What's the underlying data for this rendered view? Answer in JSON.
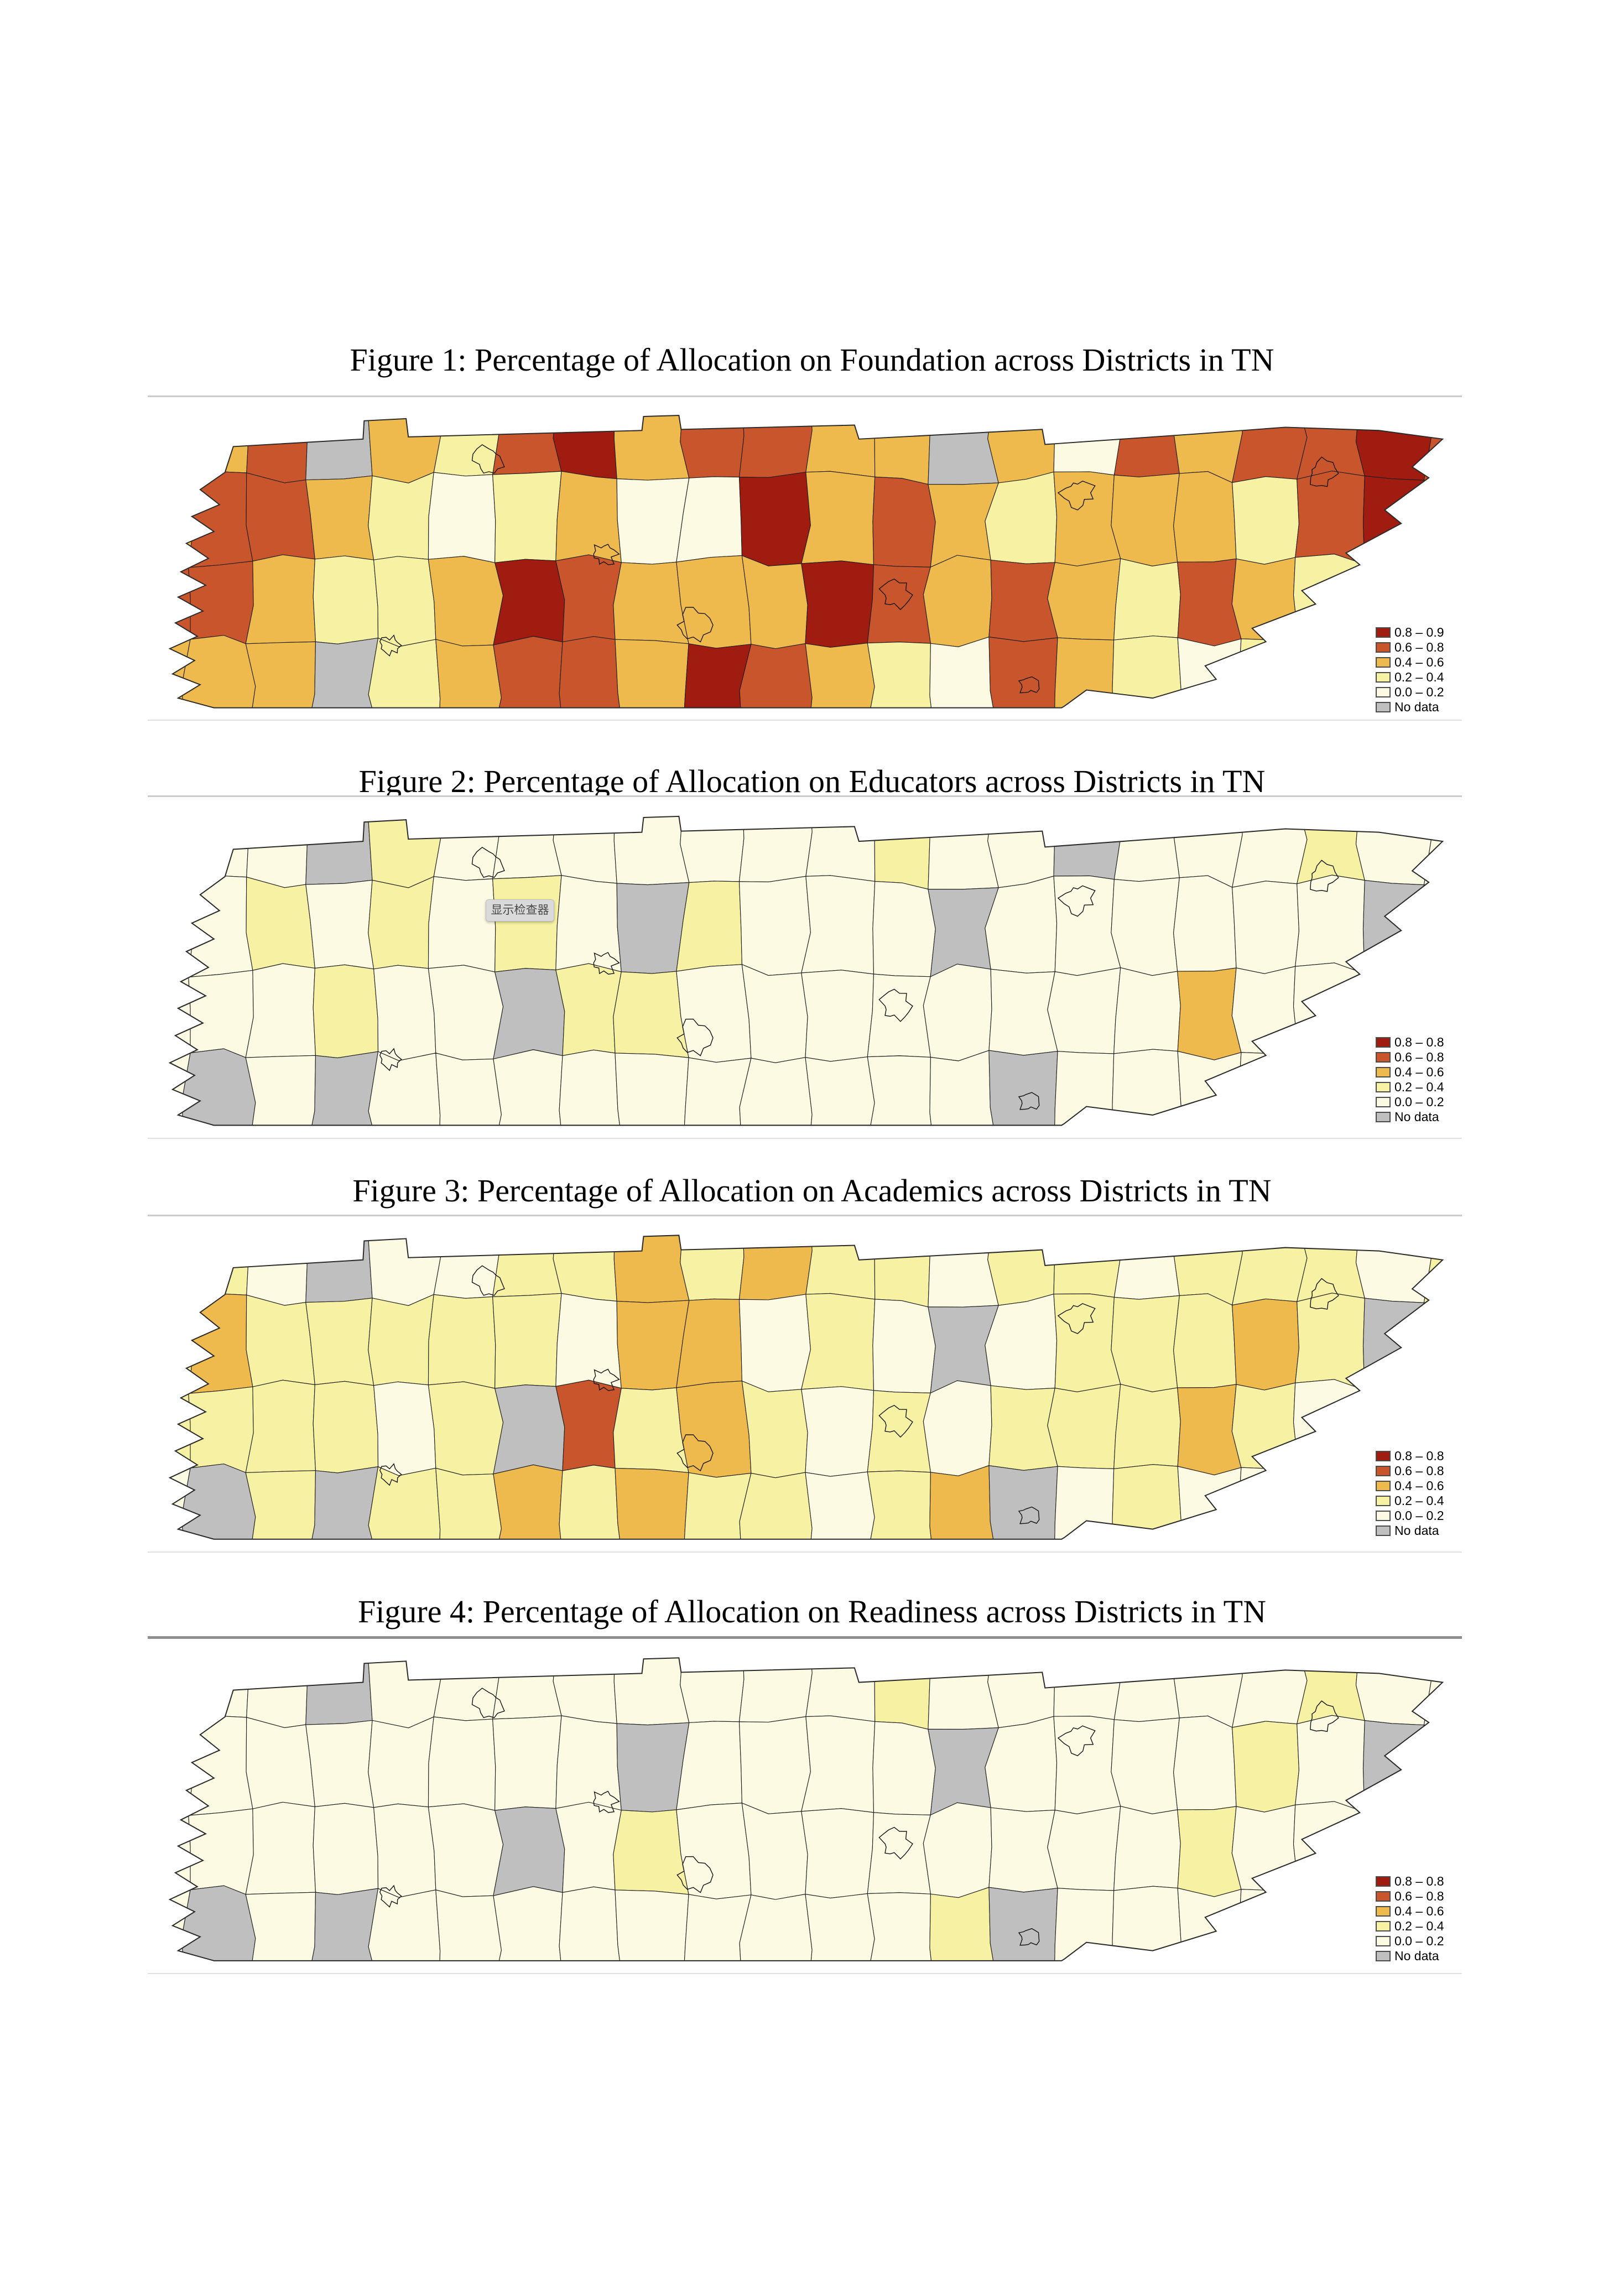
{
  "page": {
    "background": "#ffffff"
  },
  "palette": {
    "q5": "#A01B10",
    "q4": "#C8552B",
    "q3": "#EFBA4D",
    "q2": "#F7F1A3",
    "q1": "#FCFAE3",
    "nd": "#BFBFBF",
    "county_border": "#1c1c1c",
    "state_border": "#2a2a2a"
  },
  "figures": [
    {
      "title": "Figure 1: Percentage of Allocation on Foundation across Districts in TN",
      "legend": [
        {
          "label": "0.8 – 0.9",
          "class": "q5"
        },
        {
          "label": "0.6 – 0.8",
          "class": "q4"
        },
        {
          "label": "0.4 – 0.6",
          "class": "q3"
        },
        {
          "label": "0.2 – 0.4",
          "class": "q2"
        },
        {
          "label": "0.0 – 0.2",
          "class": "q1"
        },
        {
          "label": "No data",
          "class": "nd"
        }
      ],
      "cells": [
        "q2",
        "q3",
        "q4",
        "nd",
        "q3",
        "q2",
        "q4",
        "q5",
        "q3",
        "q4",
        "q4",
        "q3",
        "q3",
        "nd",
        "q3",
        "q1",
        "q4",
        "q3",
        "q4",
        "q4",
        "q5",
        "q4",
        "q3",
        "q4",
        "q4",
        "q3",
        "q2",
        "q1",
        "q2",
        "q3",
        "q1",
        "q1",
        "q5",
        "q3",
        "q4",
        "q3",
        "q2",
        "q3",
        "q3",
        "q3",
        "q2",
        "q4",
        "q5",
        "q1",
        "q4",
        "q4",
        "q3",
        "q2",
        "q2",
        "q3",
        "q5",
        "q4",
        "q3",
        "q3",
        "q3",
        "q5",
        "q4",
        "q3",
        "q4",
        "q3",
        "q2",
        "q4",
        "q3",
        "q2",
        "q4",
        "q4",
        "q3",
        "q3",
        "q3",
        "nd",
        "q2",
        "q3",
        "q4",
        "q4",
        "q3",
        "q5",
        "q4",
        "q3",
        "q2",
        "q1",
        "q4",
        "q3",
        "q2",
        "q1",
        "q2",
        "q1",
        "q1",
        "q1"
      ]
    },
    {
      "title": "Figure 2: Percentage of Allocation on Educators across Districts in TN",
      "tooltip": {
        "text": "显示检查器"
      },
      "legend": [
        {
          "label": "0.8 – 0.8",
          "class": "q5"
        },
        {
          "label": "0.6 – 0.8",
          "class": "q4"
        },
        {
          "label": "0.4 – 0.6",
          "class": "q3"
        },
        {
          "label": "0.2 – 0.4",
          "class": "q2"
        },
        {
          "label": "0.0 – 0.2",
          "class": "q1"
        },
        {
          "label": "No data",
          "class": "nd"
        }
      ],
      "cells": [
        "q1",
        "q1",
        "q1",
        "nd",
        "q2",
        "q1",
        "q1",
        "q1",
        "q1",
        "q1",
        "q1",
        "q1",
        "q2",
        "q1",
        "q1",
        "nd",
        "q1",
        "q1",
        "q1",
        "q2",
        "q1",
        "q1",
        "q1",
        "q1",
        "q2",
        "q1",
        "q2",
        "q1",
        "q2",
        "q1",
        "nd",
        "q2",
        "q1",
        "q1",
        "q1",
        "nd",
        "q1",
        "q1",
        "q1",
        "q1",
        "q1",
        "q1",
        "nd",
        "q1",
        "q1",
        "q1",
        "q1",
        "q2",
        "q1",
        "q1",
        "nd",
        "q2",
        "q2",
        "q1",
        "q1",
        "q1",
        "q1",
        "q1",
        "q1",
        "q1",
        "q1",
        "q3",
        "q1",
        "q1",
        "q1",
        "q1",
        "q1",
        "nd",
        "q1",
        "nd",
        "q1",
        "q1",
        "q1",
        "q1",
        "q1",
        "q1",
        "q1",
        "q1",
        "q1",
        "q1",
        "nd",
        "q1",
        "q1",
        "q1",
        "q1",
        "q1",
        "q1",
        "q1"
      ]
    },
    {
      "title": "Figure 3: Percentage of Allocation on Academics across Districts in TN",
      "legend": [
        {
          "label": "0.8 – 0.8",
          "class": "q5"
        },
        {
          "label": "0.6 – 0.8",
          "class": "q4"
        },
        {
          "label": "0.4 – 0.6",
          "class": "q3"
        },
        {
          "label": "0.2 – 0.4",
          "class": "q2"
        },
        {
          "label": "0.0 – 0.2",
          "class": "q1"
        },
        {
          "label": "No data",
          "class": "nd"
        }
      ],
      "cells": [
        "q2",
        "q2",
        "q1",
        "nd",
        "q1",
        "q1",
        "q2",
        "q2",
        "q3",
        "q2",
        "q3",
        "q2",
        "q2",
        "q1",
        "q2",
        "q2",
        "q1",
        "q2",
        "q2",
        "q2",
        "q1",
        "q2",
        "q2",
        "q3",
        "q2",
        "q2",
        "q2",
        "q2",
        "q2",
        "q1",
        "q3",
        "q3",
        "q1",
        "q2",
        "q1",
        "nd",
        "q1",
        "q2",
        "q2",
        "q2",
        "q3",
        "q2",
        "nd",
        "q3",
        "q2",
        "q2",
        "q2",
        "q2",
        "q1",
        "q2",
        "nd",
        "q4",
        "q2",
        "q3",
        "q2",
        "q1",
        "q2",
        "q1",
        "q2",
        "q2",
        "q2",
        "q3",
        "q2",
        "q1",
        "q1",
        "q1",
        "q1",
        "nd",
        "q2",
        "nd",
        "q2",
        "q2",
        "q3",
        "q2",
        "q3",
        "q2",
        "q2",
        "q1",
        "q2",
        "q3",
        "nd",
        "q1",
        "q2",
        "q1",
        "q1",
        "q1",
        "q1",
        "q1"
      ]
    },
    {
      "title": "Figure 4: Percentage of Allocation on Readiness across Districts in TN",
      "legend": [
        {
          "label": "0.8 – 0.8",
          "class": "q5"
        },
        {
          "label": "0.6 – 0.8",
          "class": "q4"
        },
        {
          "label": "0.4 – 0.6",
          "class": "q3"
        },
        {
          "label": "0.2 – 0.4",
          "class": "q2"
        },
        {
          "label": "0.0 – 0.2",
          "class": "q1"
        },
        {
          "label": "No data",
          "class": "nd"
        }
      ],
      "cells": [
        "q1",
        "q1",
        "q1",
        "nd",
        "q1",
        "q1",
        "q1",
        "q1",
        "q1",
        "q1",
        "q1",
        "q1",
        "q2",
        "q1",
        "q1",
        "q1",
        "q1",
        "q1",
        "q1",
        "q2",
        "q1",
        "q1",
        "q1",
        "q1",
        "q1",
        "q1",
        "q1",
        "q1",
        "q1",
        "q1",
        "nd",
        "q1",
        "q1",
        "q1",
        "q1",
        "nd",
        "q1",
        "q1",
        "q1",
        "q1",
        "q2",
        "q1",
        "nd",
        "q1",
        "q1",
        "q1",
        "q1",
        "q1",
        "q1",
        "q1",
        "nd",
        "q1",
        "q2",
        "q1",
        "q1",
        "q1",
        "q1",
        "q1",
        "q1",
        "q1",
        "q1",
        "q2",
        "q1",
        "q1",
        "q1",
        "q1",
        "q1",
        "nd",
        "q1",
        "nd",
        "q1",
        "q1",
        "q1",
        "q1",
        "q1",
        "q1",
        "q1",
        "q1",
        "q1",
        "q2",
        "nd",
        "q1",
        "q1",
        "q1",
        "q1",
        "q1",
        "q1",
        "q1"
      ]
    }
  ]
}
